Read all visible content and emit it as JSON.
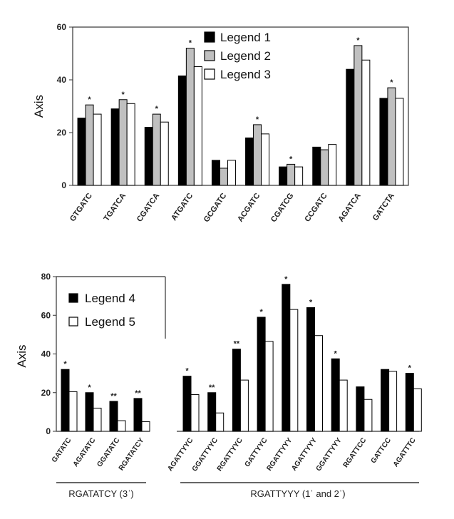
{
  "chart_data": [
    {
      "type": "bar",
      "ylabel": "Axis",
      "ylim": [
        0,
        60
      ],
      "yticks": [
        "0",
        "20",
        "40",
        "60"
      ],
      "grid": false,
      "legend_position": "top-center",
      "categories": [
        "GTGATC",
        "TGATCA",
        "CGATCA",
        "ATGATC",
        "GCGATC",
        "ACGATC",
        "CGATCG",
        "CCGATC",
        "AGATCA",
        "GATCTA"
      ],
      "series": [
        {
          "name": "Legend 1",
          "color": "#000000",
          "values": [
            25.5,
            29,
            22,
            41.5,
            9.5,
            18,
            7,
            14.5,
            44,
            33
          ]
        },
        {
          "name": "Legend 2",
          "color": "#c0c0c0",
          "values": [
            30.5,
            32.5,
            27,
            52,
            6.5,
            23,
            8,
            13.5,
            53,
            37
          ]
        },
        {
          "name": "Legend 3",
          "color": "#ffffff",
          "values": [
            27,
            31,
            24,
            45,
            9.5,
            19.5,
            7,
            15.5,
            47.5,
            33
          ]
        }
      ],
      "annotations": [
        "*",
        "*",
        "*",
        "*",
        "",
        "*",
        "*",
        "",
        "*",
        "*"
      ]
    },
    {
      "type": "bar",
      "ylabel": "Axis",
      "ylim": [
        0,
        80
      ],
      "yticks": [
        "0",
        "20",
        "40",
        "60",
        "80"
      ],
      "grid": false,
      "legend_position": "top-left",
      "categories": [
        "GATATC",
        "AGATATC",
        "GGATATC",
        "RGATATCY",
        "AGATTYYC",
        "GGATTYYC",
        "RGATTYYC",
        "GATTYYC",
        "RGATTYYY",
        "AGATTYYY",
        "GGATTYYY",
        "RGATTCC",
        "GATTCC",
        "AGATTTC"
      ],
      "series": [
        {
          "name": "Legend 4",
          "color": "#000000",
          "values": [
            32,
            20,
            15.5,
            17,
            28.5,
            20,
            42.5,
            59,
            76,
            64,
            37.5,
            23,
            32,
            30
          ]
        },
        {
          "name": "Legend 5",
          "color": "#ffffff",
          "values": [
            20.5,
            12,
            5.5,
            5,
            19,
            9.5,
            26.5,
            46.5,
            63,
            49.5,
            26.5,
            16.5,
            31,
            22
          ]
        }
      ],
      "annotations": [
        "*",
        "*",
        "**",
        "**",
        "*",
        "**",
        "**",
        "*",
        "*",
        "*",
        "*",
        "",
        "",
        "*"
      ],
      "groups": [
        {
          "label": "RGATATCY (3ˈ)"
        },
        {
          "label": "RGATTYYY (1ˈ and 2ˈ)"
        }
      ]
    }
  ]
}
